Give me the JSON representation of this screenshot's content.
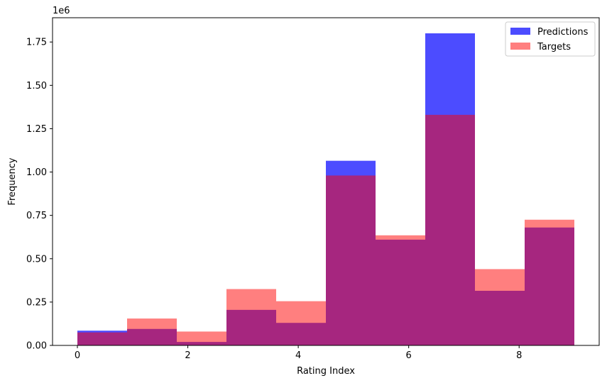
{
  "chart_data": {
    "type": "bar",
    "histogram": true,
    "bin_edges": [
      0,
      0.9,
      1.8,
      2.7,
      3.6,
      4.5,
      5.4,
      6.3,
      7.2,
      8.1,
      9.0
    ],
    "series": [
      {
        "name": "Predictions",
        "color": "#0000ff",
        "alpha": 0.7,
        "values": [
          85000,
          95000,
          20000,
          205000,
          130000,
          1065000,
          610000,
          1800000,
          315000,
          680000
        ]
      },
      {
        "name": "Targets",
        "color": "#ff0000",
        "alpha": 0.5,
        "values": [
          75000,
          155000,
          80000,
          325000,
          255000,
          980000,
          635000,
          1330000,
          440000,
          725000
        ]
      }
    ],
    "xlabel": "Rating Index",
    "ylabel": "Frequency",
    "y_offset_text": "1e6",
    "xlim": [
      -0.45,
      9.45
    ],
    "ylim": [
      0,
      1890000
    ],
    "xticks": [
      0,
      2,
      4,
      6,
      8
    ],
    "xtick_labels": [
      "0",
      "2",
      "4",
      "6",
      "8"
    ],
    "yticks": [
      0,
      250000,
      500000,
      750000,
      1000000,
      1250000,
      1500000,
      1750000
    ],
    "ytick_labels": [
      "0.00",
      "0.25",
      "0.50",
      "0.75",
      "1.00",
      "1.25",
      "1.50",
      "1.75"
    ],
    "grid": false,
    "legend": "top-right"
  }
}
